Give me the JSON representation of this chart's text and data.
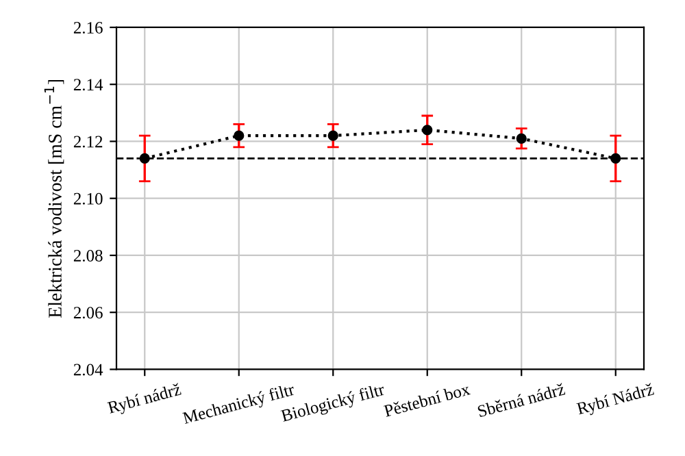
{
  "chart_data": {
    "type": "line",
    "ylabel": "Elektrická vodivost [mS cm$^{−1}$]",
    "categories": [
      "Rybí nádrž",
      "Mechanický filtr",
      "Biologický filtr",
      "Pěstební box",
      "Sběrná nádrž",
      "Rybí Nádrž"
    ],
    "series": [
      {
        "color": "#000000",
        "values": [
          2.114,
          2.122,
          2.122,
          2.124,
          2.121,
          2.114
        ],
        "errors": [
          0.008,
          0.004,
          0.004,
          0.005,
          0.0035,
          0.008
        ]
      }
    ],
    "marker": "circle",
    "line_style": "dotted",
    "ref_lines": [
      {
        "axis": "y",
        "value": 2.114,
        "color": "#000000",
        "line_style": "dashed"
      }
    ],
    "ylim": [
      2.04,
      2.16
    ],
    "yticks": [
      2.04,
      2.06,
      2.08,
      {
        "value": 2.1,
        "label": "2.10"
      },
      2.12,
      2.14,
      2.16
    ],
    "grid": true
  }
}
